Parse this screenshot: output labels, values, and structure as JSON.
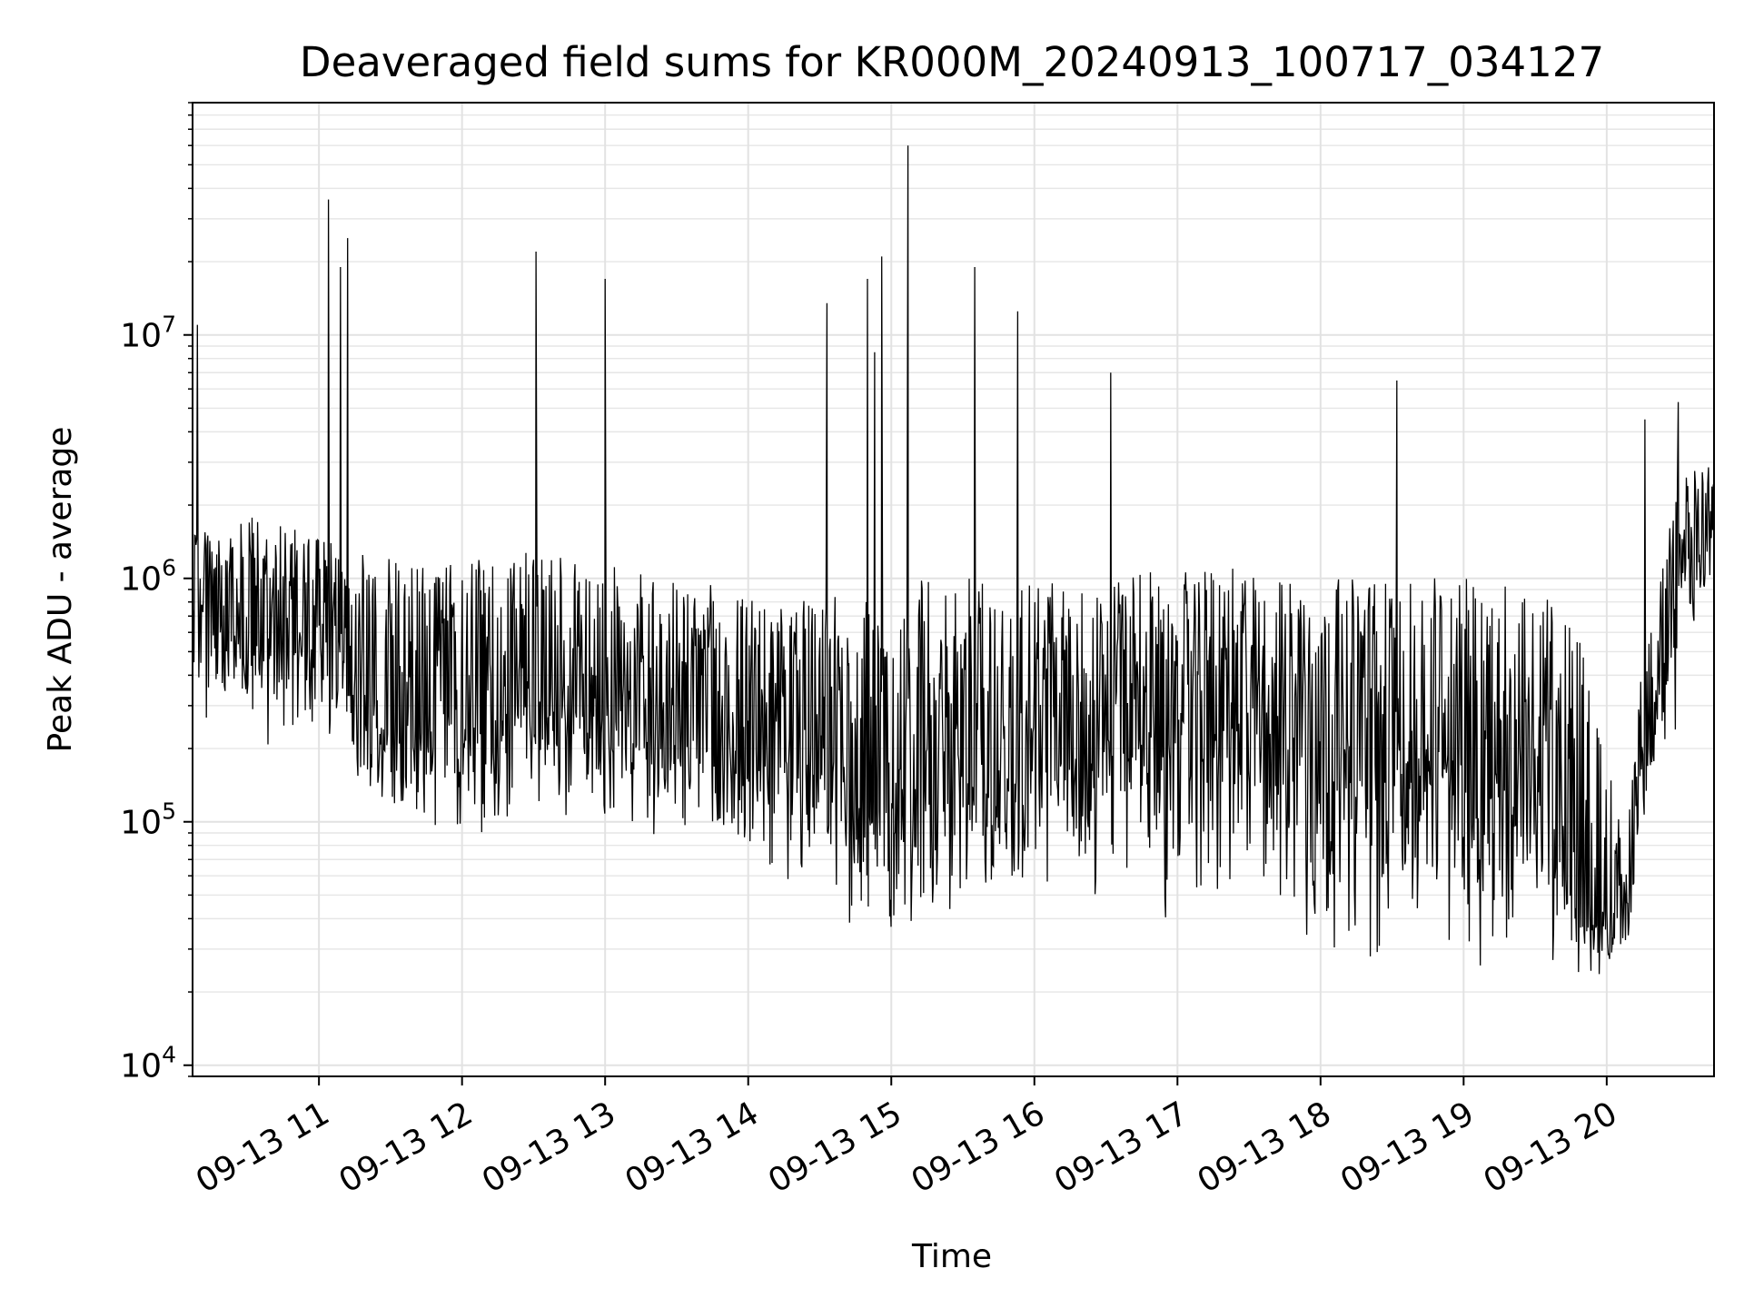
{
  "chart_data": {
    "type": "line",
    "title": "Deaveraged field sums for KR000M_20240913_100717_034127",
    "xlabel": "Time",
    "ylabel": "Peak ADU - average",
    "yscale": "log",
    "ylim": [
      9000,
      90000000
    ],
    "xlim": [
      "2024-09-13 10:07",
      "2024-09-13 20:45"
    ],
    "grid": true,
    "x_ticks": [
      {
        "value": "2024-09-13 11:00",
        "label": "09-13 11"
      },
      {
        "value": "2024-09-13 12:00",
        "label": "09-13 12"
      },
      {
        "value": "2024-09-13 13:00",
        "label": "09-13 13"
      },
      {
        "value": "2024-09-13 14:00",
        "label": "09-13 14"
      },
      {
        "value": "2024-09-13 15:00",
        "label": "09-13 15"
      },
      {
        "value": "2024-09-13 16:00",
        "label": "09-13 16"
      },
      {
        "value": "2024-09-13 17:00",
        "label": "09-13 17"
      },
      {
        "value": "2024-09-13 18:00",
        "label": "09-13 18"
      },
      {
        "value": "2024-09-13 19:00",
        "label": "09-13 19"
      },
      {
        "value": "2024-09-13 20:00",
        "label": "09-13 20"
      }
    ],
    "y_ticks": [
      {
        "value": 10000,
        "base": "10",
        "exp": "4"
      },
      {
        "value": 100000,
        "base": "10",
        "exp": "5"
      },
      {
        "value": 1000000,
        "base": "10",
        "exp": "6"
      },
      {
        "value": 10000000,
        "base": "10",
        "exp": "7"
      }
    ],
    "series": [
      {
        "color": "#000000",
        "envelope": [
          {
            "x": "2024-09-13 10:07",
            "low": 250000,
            "mid": 800000,
            "high": 1500000
          },
          {
            "x": "2024-09-13 10:30",
            "low": 200000,
            "mid": 700000,
            "high": 1800000
          },
          {
            "x": "2024-09-13 11:00",
            "low": 180000,
            "mid": 650000,
            "high": 1500000
          },
          {
            "x": "2024-09-13 11:30",
            "low": 90000,
            "mid": 260000,
            "high": 1200000
          },
          {
            "x": "2024-09-13 12:00",
            "low": 70000,
            "mid": 250000,
            "high": 1200000
          },
          {
            "x": "2024-09-13 12:30",
            "low": 110000,
            "mid": 350000,
            "high": 1300000
          },
          {
            "x": "2024-09-13 13:00",
            "low": 90000,
            "mid": 280000,
            "high": 1200000
          },
          {
            "x": "2024-09-13 13:30",
            "low": 70000,
            "mid": 220000,
            "high": 1000000
          },
          {
            "x": "2024-09-13 14:00",
            "low": 50000,
            "mid": 200000,
            "high": 900000
          },
          {
            "x": "2024-09-13 14:30",
            "low": 40000,
            "mid": 170000,
            "high": 800000
          },
          {
            "x": "2024-09-13 15:00",
            "low": 28000,
            "mid": 120000,
            "high": 1000000
          },
          {
            "x": "2024-09-13 15:30",
            "low": 32000,
            "mid": 150000,
            "high": 1000000
          },
          {
            "x": "2024-09-13 16:00",
            "low": 45000,
            "mid": 180000,
            "high": 1000000
          },
          {
            "x": "2024-09-13 16:30",
            "low": 45000,
            "mid": 200000,
            "high": 1000000
          },
          {
            "x": "2024-09-13 17:00",
            "low": 35000,
            "mid": 260000,
            "high": 1100000
          },
          {
            "x": "2024-09-13 17:30",
            "low": 30000,
            "mid": 260000,
            "high": 1100000
          },
          {
            "x": "2024-09-13 18:00",
            "low": 25000,
            "mid": 220000,
            "high": 1000000
          },
          {
            "x": "2024-09-13 18:30",
            "low": 25000,
            "mid": 200000,
            "high": 1000000
          },
          {
            "x": "2024-09-13 19:00",
            "low": 25000,
            "mid": 180000,
            "high": 1000000
          },
          {
            "x": "2024-09-13 19:30",
            "low": 22000,
            "mid": 150000,
            "high": 950000
          },
          {
            "x": "2024-09-13 19:50",
            "low": 20000,
            "mid": 40000,
            "high": 600000
          },
          {
            "x": "2024-09-13 20:08",
            "low": 25000,
            "mid": 35000,
            "high": 80000
          },
          {
            "x": "2024-09-13 20:15",
            "low": 80000,
            "mid": 200000,
            "high": 500000
          },
          {
            "x": "2024-09-13 20:30",
            "low": 150000,
            "mid": 900000,
            "high": 2500000
          },
          {
            "x": "2024-09-13 20:45",
            "low": 1000000,
            "mid": 1800000,
            "high": 3300000
          }
        ],
        "spikes": [
          {
            "x": "2024-09-13 10:09",
            "y": 11000000
          },
          {
            "x": "2024-09-13 11:04",
            "y": 36000000
          },
          {
            "x": "2024-09-13 11:09",
            "y": 19000000
          },
          {
            "x": "2024-09-13 11:12",
            "y": 25000000
          },
          {
            "x": "2024-09-13 12:31",
            "y": 22000000
          },
          {
            "x": "2024-09-13 13:00",
            "y": 17000000
          },
          {
            "x": "2024-09-13 14:33",
            "y": 13500000
          },
          {
            "x": "2024-09-13 14:50",
            "y": 17000000
          },
          {
            "x": "2024-09-13 14:53",
            "y": 8500000
          },
          {
            "x": "2024-09-13 14:56",
            "y": 21000000
          },
          {
            "x": "2024-09-13 15:07",
            "y": 60000000
          },
          {
            "x": "2024-09-13 15:35",
            "y": 19000000
          },
          {
            "x": "2024-09-13 15:53",
            "y": 12500000
          },
          {
            "x": "2024-09-13 16:32",
            "y": 7000000
          },
          {
            "x": "2024-09-13 18:32",
            "y": 6500000
          },
          {
            "x": "2024-09-13 20:16",
            "y": 4500000
          },
          {
            "x": "2024-09-13 20:30",
            "y": 5300000
          }
        ]
      }
    ]
  }
}
